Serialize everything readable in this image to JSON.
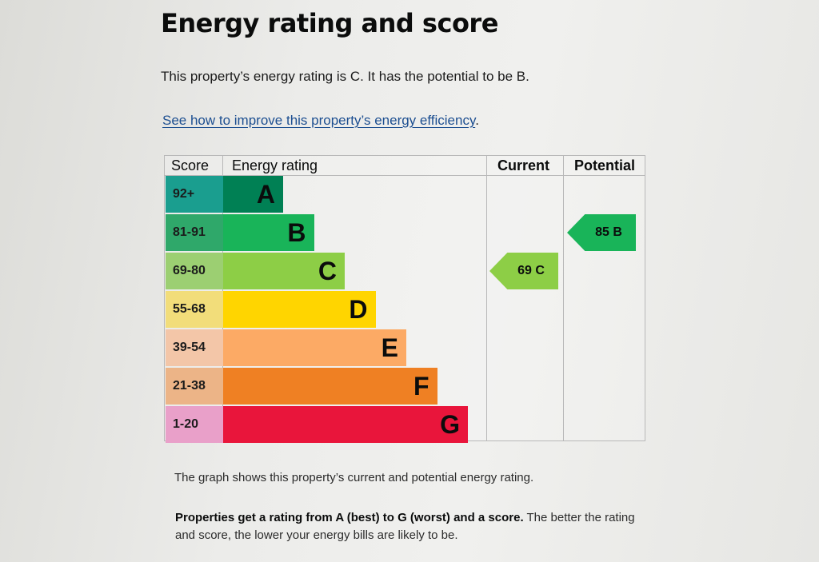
{
  "heading": "Energy rating and score",
  "intro": "This property’s energy rating is C. It has the potential to be B.",
  "improve_link": "See how to improve this property’s energy efficiency",
  "improve_link_suffix": ".",
  "chart": {
    "headers": {
      "score": "Score",
      "rating": "Energy rating",
      "current": "Current",
      "potential": "Potential"
    },
    "bands": [
      {
        "letter": "A",
        "range": "92+",
        "color": "#008054",
        "score_bg": "#1a9e8f"
      },
      {
        "letter": "B",
        "range": "81-91",
        "color": "#19b459",
        "score_bg": "#2fa86a"
      },
      {
        "letter": "C",
        "range": "69-80",
        "color": "#8dce46",
        "score_bg": "#9ccf72"
      },
      {
        "letter": "D",
        "range": "55-68",
        "color": "#ffd500",
        "score_bg": "#f2dd7a"
      },
      {
        "letter": "E",
        "range": "39-54",
        "color": "#fcaa65",
        "score_bg": "#f3c6a8"
      },
      {
        "letter": "F",
        "range": "21-38",
        "color": "#ef8023",
        "score_bg": "#ecb487"
      },
      {
        "letter": "G",
        "range": "1-20",
        "color": "#e9153b",
        "score_bg": "#e9a0c9"
      }
    ],
    "current": {
      "label": "69 C",
      "score": 69,
      "band": "C",
      "color": "#8dce46"
    },
    "potential": {
      "label": "85 B",
      "score": 85,
      "band": "B",
      "color": "#19b459"
    }
  },
  "graph_caption": "The graph shows this property’s current and potential energy rating.",
  "rating_explainer_bold": "Properties get a rating from A (best) to G (worst) and a score.",
  "rating_explainer_rest": " The better the rating and score, the lower your energy bills are likely to be."
}
